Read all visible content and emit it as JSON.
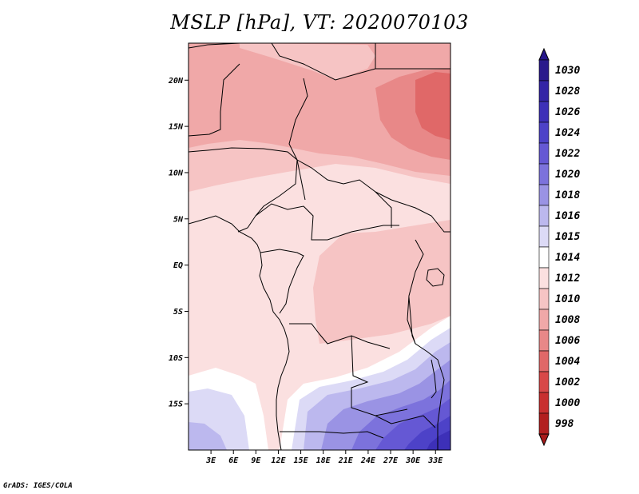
{
  "title": "MSLP [hPa], VT: 2020070103",
  "credit": "GrADS: IGES/COLA",
  "map": {
    "lon_range": [
      0,
      35
    ],
    "lat_range": [
      -20,
      24
    ],
    "lat_ticks": [
      {
        "value": 20,
        "label": "20N"
      },
      {
        "value": 15,
        "label": "15N"
      },
      {
        "value": 10,
        "label": "10N"
      },
      {
        "value": 5,
        "label": "5N"
      },
      {
        "value": 0,
        "label": "EQ"
      },
      {
        "value": -5,
        "label": "5S"
      },
      {
        "value": -10,
        "label": "10S"
      },
      {
        "value": -15,
        "label": "15S"
      }
    ],
    "lon_ticks": [
      {
        "value": 3,
        "label": "3E"
      },
      {
        "value": 6,
        "label": "6E"
      },
      {
        "value": 9,
        "label": "9E"
      },
      {
        "value": 12,
        "label": "12E"
      },
      {
        "value": 15,
        "label": "15E"
      },
      {
        "value": 18,
        "label": "18E"
      },
      {
        "value": 21,
        "label": "21E"
      },
      {
        "value": 24,
        "label": "24E"
      },
      {
        "value": 27,
        "label": "27E"
      },
      {
        "value": 30,
        "label": "30E"
      },
      {
        "value": 33,
        "label": "33E"
      }
    ]
  },
  "colorbar": {
    "levels": [
      {
        "label": "1030",
        "color": "#2a1a8c"
      },
      {
        "label": "1028",
        "color": "#3324a6"
      },
      {
        "label": "1026",
        "color": "#3d30b8"
      },
      {
        "label": "1024",
        "color": "#4d42c8"
      },
      {
        "label": "1022",
        "color": "#6558d4"
      },
      {
        "label": "1020",
        "color": "#7c72dc"
      },
      {
        "label": "1018",
        "color": "#9a93e4"
      },
      {
        "label": "1016",
        "color": "#bcb8ee"
      },
      {
        "label": "1015",
        "color": "#dcdaf6"
      },
      {
        "label": "1014",
        "color": "#ffffff"
      },
      {
        "label": "1012",
        "color": "#fbe0e0"
      },
      {
        "label": "1010",
        "color": "#f6c4c4"
      },
      {
        "label": "1008",
        "color": "#f0a8a8"
      },
      {
        "label": "1006",
        "color": "#e88888"
      },
      {
        "label": "1004",
        "color": "#e06868"
      },
      {
        "label": "1002",
        "color": "#d84848"
      },
      {
        "label": "1000",
        "color": "#c83030"
      },
      {
        "label": "998",
        "color": "#b21f1f"
      }
    ],
    "top_cap_color": "#26168a",
    "bottom_cap_color": "#a81a1a"
  }
}
